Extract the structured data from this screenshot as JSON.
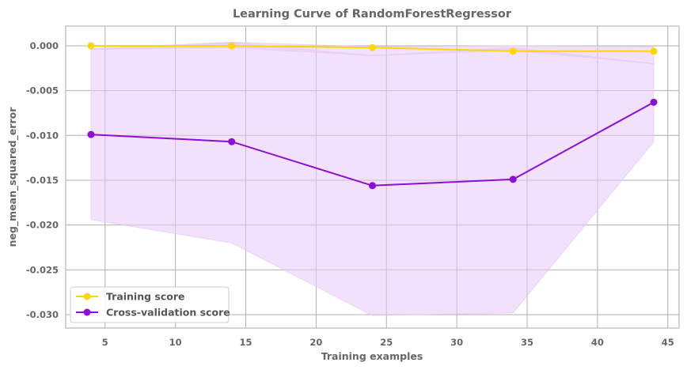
{
  "chart_data": {
    "type": "line",
    "title": "Learning Curve of RandomForestRegressor",
    "xlabel": "Training examples",
    "ylabel": "neg_mean_squared_error",
    "xlim": [
      2.2,
      45.8
    ],
    "ylim": [
      -0.0315,
      0.0022
    ],
    "xticks": [
      5,
      10,
      15,
      20,
      25,
      30,
      35,
      40,
      45
    ],
    "yticks": [
      0.0,
      -0.005,
      -0.01,
      -0.015,
      -0.02,
      -0.025,
      -0.03
    ],
    "ytick_labels": [
      "0.000",
      "-0.005",
      "-0.010",
      "-0.015",
      "-0.020",
      "-0.025",
      "-0.030"
    ],
    "xtick_labels": [
      "5",
      "10",
      "15",
      "20",
      "25",
      "30",
      "35",
      "40",
      "45"
    ],
    "grid": true,
    "legend": "lower-left",
    "x": [
      4,
      14,
      24,
      34,
      44
    ],
    "series": [
      {
        "name": "Training score",
        "color": "#FFD700",
        "values": [
          0.0,
          0.0,
          -0.0002,
          -0.0006,
          -0.0006
        ],
        "band_upper": [
          -0.0003,
          0.0004,
          -0.0001,
          0.0,
          -0.0001
        ],
        "band_lower": [
          -0.0004,
          -0.0002,
          -0.0011,
          -0.0005,
          -0.002
        ]
      },
      {
        "name": "Cross-validation score",
        "color": "#8B0FD6",
        "values": [
          -0.0099,
          -0.0107,
          -0.0156,
          -0.0149,
          -0.0063
        ],
        "band_upper": [
          -0.0004,
          0.0004,
          -0.0011,
          -0.0002,
          -0.002
        ],
        "band_lower": [
          -0.0194,
          -0.022,
          -0.0301,
          -0.0298,
          -0.0107
        ]
      }
    ],
    "band_color": "#E6C8F5"
  }
}
